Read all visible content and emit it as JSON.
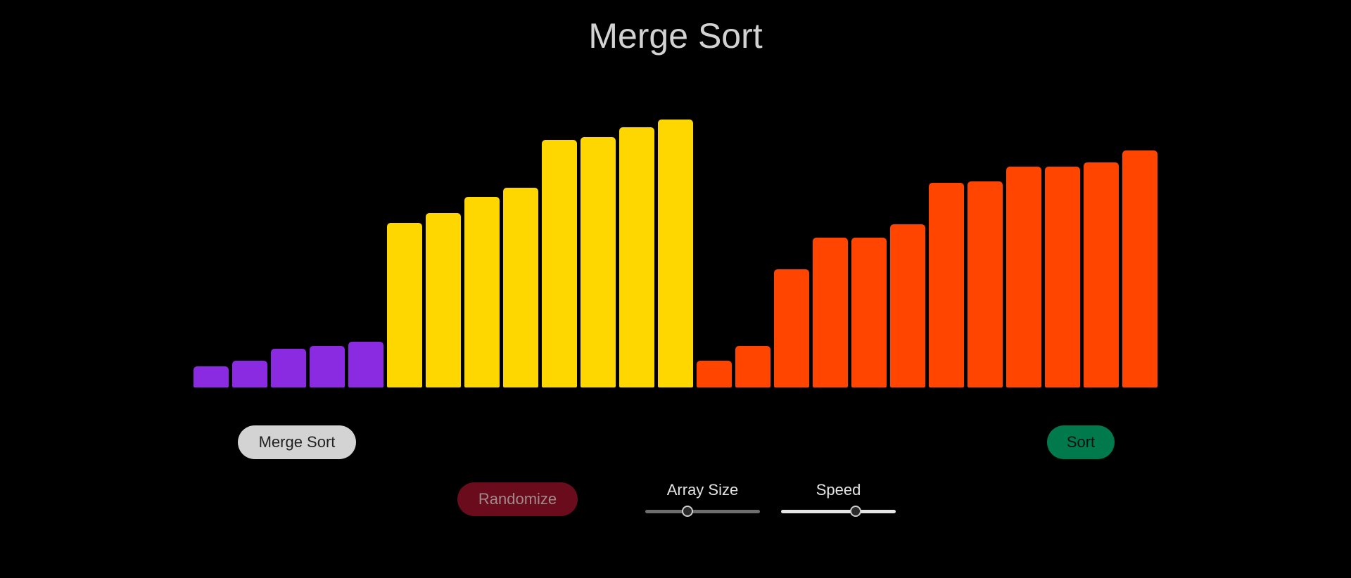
{
  "page": {
    "title": "Merge Sort"
  },
  "bars": {
    "max_value": 100,
    "colors": {
      "left_sorted": "#8a2be2",
      "left_merging": "#ffd700",
      "right_merging": "#ff4500"
    },
    "items": [
      {
        "value": 8,
        "group": "left_sorted"
      },
      {
        "value": 10,
        "group": "left_sorted"
      },
      {
        "value": 14.5,
        "group": "left_sorted"
      },
      {
        "value": 15.5,
        "group": "left_sorted"
      },
      {
        "value": 17,
        "group": "left_sorted"
      },
      {
        "value": 61.5,
        "group": "left_merging"
      },
      {
        "value": 65,
        "group": "left_merging"
      },
      {
        "value": 71,
        "group": "left_merging"
      },
      {
        "value": 74.5,
        "group": "left_merging"
      },
      {
        "value": 92.5,
        "group": "left_merging"
      },
      {
        "value": 93.5,
        "group": "left_merging"
      },
      {
        "value": 97,
        "group": "left_merging"
      },
      {
        "value": 100,
        "group": "left_merging"
      },
      {
        "value": 10,
        "group": "right_merging"
      },
      {
        "value": 15.5,
        "group": "right_merging"
      },
      {
        "value": 44,
        "group": "right_merging"
      },
      {
        "value": 56,
        "group": "right_merging"
      },
      {
        "value": 56,
        "group": "right_merging"
      },
      {
        "value": 61,
        "group": "right_merging"
      },
      {
        "value": 76.5,
        "group": "right_merging"
      },
      {
        "value": 77,
        "group": "right_merging"
      },
      {
        "value": 82.5,
        "group": "right_merging"
      },
      {
        "value": 82.5,
        "group": "right_merging"
      },
      {
        "value": 84,
        "group": "right_merging"
      },
      {
        "value": 88.5,
        "group": "right_merging"
      }
    ]
  },
  "controls": {
    "algorithm_button": "Merge Sort",
    "sort_button": "Sort",
    "randomize_button": "Randomize",
    "array_size": {
      "label": "Array Size",
      "fraction": 0.37,
      "track_color": "#6e6e6e"
    },
    "speed": {
      "label": "Speed",
      "fraction": 0.65,
      "track_color": "#e6e6e6"
    }
  }
}
